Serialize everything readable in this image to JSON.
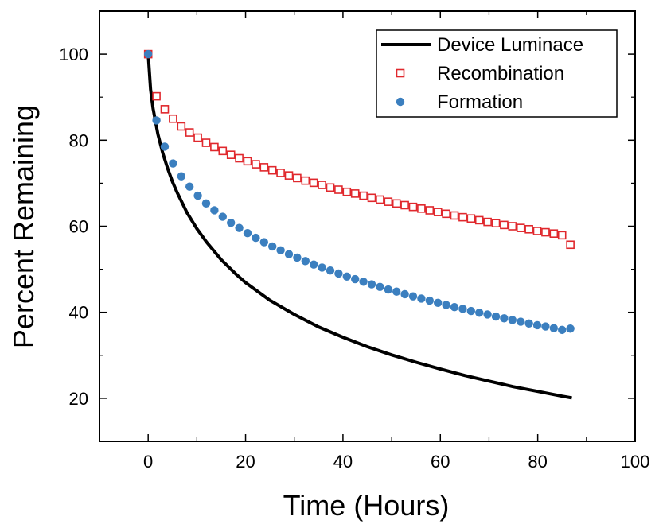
{
  "chart_data": {
    "type": "line",
    "title": "",
    "xlabel": "Time (Hours)",
    "ylabel": "Percent Remaining",
    "xlim": [
      -10,
      100
    ],
    "ylim": [
      10,
      110
    ],
    "x_ticks": [
      0,
      20,
      40,
      60,
      80,
      100
    ],
    "y_ticks": [
      20,
      40,
      60,
      80,
      100
    ],
    "x_tick_labels": [
      "0",
      "20",
      "40",
      "60",
      "80",
      "100"
    ],
    "y_tick_labels": [
      "20",
      "40",
      "60",
      "80",
      "100"
    ],
    "legend_position": "top-right",
    "grid": false,
    "series": [
      {
        "name": "Device Luminace",
        "style": "line",
        "color": "#000000",
        "x": [
          0,
          0.5,
          1,
          2,
          3,
          4,
          5,
          6,
          8,
          10,
          12,
          15,
          18,
          20,
          25,
          30,
          35,
          40,
          45,
          50,
          55,
          60,
          65,
          70,
          75,
          80,
          85,
          87
        ],
        "y": [
          100,
          91.8,
          87.4,
          81.4,
          77.0,
          73.4,
          70.3,
          67.7,
          63.1,
          59.4,
          56.3,
          52.2,
          48.9,
          46.9,
          42.8,
          39.5,
          36.6,
          34.2,
          32.0,
          30.1,
          28.4,
          26.8,
          25.3,
          24.0,
          22.7,
          21.6,
          20.5,
          20.1
        ]
      },
      {
        "name": "Recombination",
        "style": "open-square",
        "color": "#e0282d",
        "x": [
          0,
          1.7,
          3.4,
          5.1,
          6.8,
          8.5,
          10.2,
          11.9,
          13.6,
          15.3,
          17.0,
          18.7,
          20.4,
          22.1,
          23.8,
          25.5,
          27.2,
          28.9,
          30.6,
          32.3,
          34.0,
          35.7,
          37.4,
          39.1,
          40.8,
          42.5,
          44.2,
          45.9,
          47.6,
          49.3,
          51.0,
          52.7,
          54.4,
          56.1,
          57.8,
          59.5,
          61.2,
          62.9,
          64.6,
          66.3,
          68.0,
          69.7,
          71.4,
          73.1,
          74.8,
          76.5,
          78.2,
          79.9,
          81.6,
          83.3,
          85.0,
          86.7
        ],
        "y": [
          100,
          90.2,
          87.2,
          85.0,
          83.2,
          81.8,
          80.6,
          79.4,
          78.4,
          77.5,
          76.6,
          75.8,
          75.1,
          74.4,
          73.7,
          73.0,
          72.4,
          71.8,
          71.2,
          70.6,
          70.1,
          69.6,
          69.0,
          68.5,
          68.0,
          67.6,
          67.1,
          66.6,
          66.2,
          65.7,
          65.3,
          64.9,
          64.5,
          64.1,
          63.7,
          63.3,
          62.9,
          62.5,
          62.1,
          61.8,
          61.4,
          61.0,
          60.7,
          60.3,
          60.0,
          59.6,
          59.3,
          58.9,
          58.6,
          58.3,
          57.9,
          55.7
        ]
      },
      {
        "name": "Formation",
        "style": "filled-circle",
        "color": "#3b7fbf",
        "x": [
          0,
          1.7,
          3.4,
          5.1,
          6.8,
          8.5,
          10.2,
          11.9,
          13.6,
          15.3,
          17.0,
          18.7,
          20.4,
          22.1,
          23.8,
          25.5,
          27.2,
          28.9,
          30.6,
          32.3,
          34.0,
          35.7,
          37.4,
          39.1,
          40.8,
          42.5,
          44.2,
          45.9,
          47.6,
          49.3,
          51.0,
          52.7,
          54.4,
          56.1,
          57.8,
          59.5,
          61.2,
          62.9,
          64.6,
          66.3,
          68.0,
          69.7,
          71.4,
          73.1,
          74.8,
          76.5,
          78.2,
          79.9,
          81.6,
          83.3,
          85.0,
          86.7
        ],
        "y": [
          100,
          84.6,
          78.5,
          74.6,
          71.6,
          69.2,
          67.1,
          65.3,
          63.7,
          62.2,
          60.8,
          59.6,
          58.4,
          57.3,
          56.3,
          55.3,
          54.4,
          53.5,
          52.7,
          51.9,
          51.1,
          50.4,
          49.7,
          49.0,
          48.3,
          47.7,
          47.1,
          46.5,
          45.9,
          45.3,
          44.8,
          44.2,
          43.7,
          43.2,
          42.7,
          42.2,
          41.7,
          41.2,
          40.8,
          40.3,
          39.9,
          39.5,
          39.0,
          38.6,
          38.2,
          37.8,
          37.4,
          37.0,
          36.7,
          36.3,
          35.9,
          36.2
        ]
      }
    ]
  }
}
